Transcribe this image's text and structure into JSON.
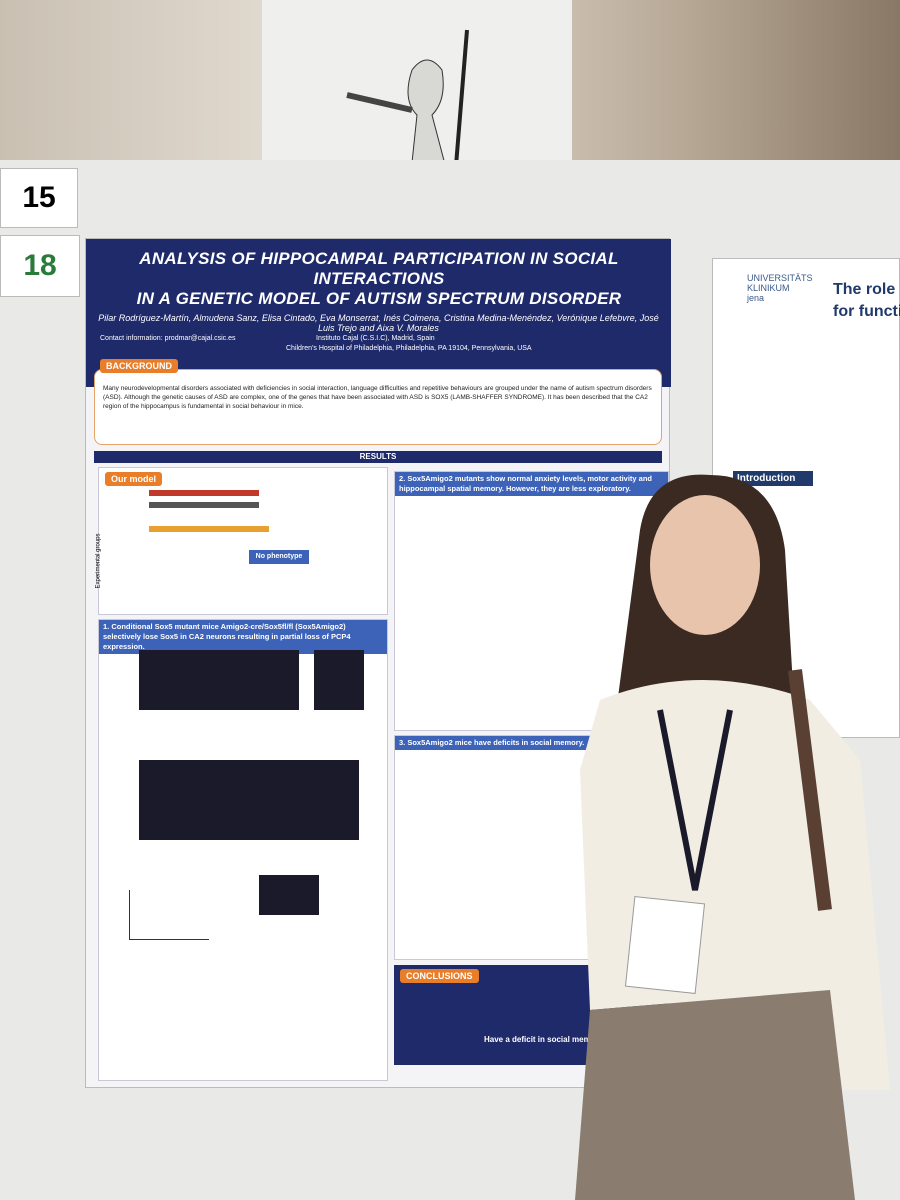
{
  "board_numbers": [
    "15",
    "18"
  ],
  "poster": {
    "title_lines": [
      "ANALYSIS OF HIPPOCAMPAL PARTICIPATION IN SOCIAL INTERACTIONS",
      "IN A GENETIC MODEL OF AUTISM SPECTRUM DISORDER"
    ],
    "authors": "Pilar Rodríguez-Martín, Almudena Sanz, Elisa Cintado, Eva Monserrat, Inés Colmena, Cristina Medina-Menéndez, Verónique Lefebvre, José Luis Trejo and Aixa V. Morales",
    "contact": "Contact information: prodmar@cajal.csic.es",
    "affiliations": [
      "Instituto Cajal (C.S.I.C), Madrid, Spain",
      "Children's Hospital of Philadelphia, Philadelphia, PA 19104, Pennsylvania, USA"
    ],
    "background_heading": "BACKGROUND",
    "background_text": "Many neurodevelopmental disorders associated with deficiencies in social interaction, language difficulties and repetitive behaviours are grouped under the name of autism spectrum disorders (ASD). Although the genetic causes of ASD are complex, one of the genes that have been associated with ASD is SOX5 (LAMB-SHAFFER SYNDROME). It has been described that the CA2 region of the hippocampus is fundamental in social behaviour in mice.",
    "results_heading": "RESULTS",
    "our_model": "Our model",
    "no_phenotype": "No phenotype",
    "experimental_groups": "Experimental groups",
    "panel_1": "1. Conditional Sox5 mutant mice Amigo2-cre/Sox5fl/fl (Sox5Amigo2) selectively lose Sox5 in CA2 neurons resulting in partial loss of PCP4 expression.",
    "panel_2": "2. Sox5Amigo2 mutants show normal anxiety levels, motor activity and hippocampal spatial memory. However, they are less exploratory.",
    "panel_3": "3. Sox5Amigo2 mice have deficits in social memory.",
    "conclusions": "CONCLUSIONS",
    "conclusion_final": "Have a deficit in social memory"
  },
  "side_poster": {
    "institution": [
      "UNIVERSITÄTS",
      "KLINIKUM",
      "jena"
    ],
    "title_lines": [
      "The role o",
      "for functi"
    ],
    "introduction": "Introduction"
  }
}
